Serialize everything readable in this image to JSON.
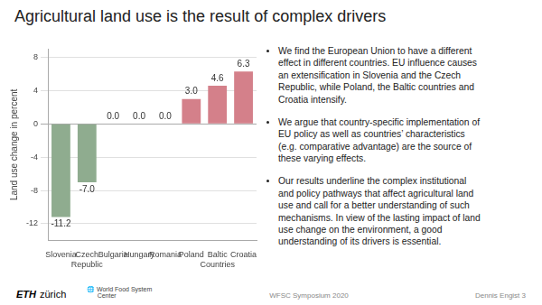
{
  "chart_data": {
    "type": "bar",
    "title": "Agricultural land use is the result of complex drivers",
    "categories": [
      "Slovenia",
      "Czech\nRepublic",
      "Bulgaria",
      "Hungary",
      "Romania",
      "Poland",
      "Baltic\nCountries",
      "Croatia"
    ],
    "values": [
      -11.2,
      -7.0,
      0.0,
      0.0,
      0.0,
      3.0,
      4.6,
      6.3
    ],
    "value_labels": [
      "-11.2",
      "-7.0",
      "0.0",
      "0.0",
      "0.0",
      "3.0",
      "4.6",
      "6.3"
    ],
    "data_labels": true,
    "colors": [
      "#8fac8f",
      "#8fac8f",
      "#d4808a",
      "#d4808a",
      "#d4808a",
      "#d4808a",
      "#d4808a",
      "#d4808a"
    ],
    "ylabel": "Land use change in percent",
    "ylim": [
      -14,
      9
    ],
    "yticks": [
      -12,
      -8,
      -4,
      0,
      4,
      8
    ],
    "grid": true,
    "legend": false,
    "annotations": [
      "We find the European Union to have a different\neffect in different countries. EU influence causes\nan extensification in Slovenia and the Czech\nRepublic, while Poland, the Baltic countries and\nCroatia intensify.",
      "We argue that country-specific implementation of\nEU policy as well as countries’ characteristics\n(e.g. comparative advantage) are the source of\nthese varying effects.",
      "Our results underline the complex institutional\nand policy pathways that affect agricultural land\nuse and call for a better understanding of such\nmechanisms. In view of the lasting impact of land\nuse change on the environment, a good\nunderstanding of its drivers is essential."
    ],
    "footer": [
      "ETH",
      "zürich",
      "🌐 World Food System\n      Center",
      "WFSC Symposium 2020",
      "Dennis Engist 3"
    ]
  }
}
